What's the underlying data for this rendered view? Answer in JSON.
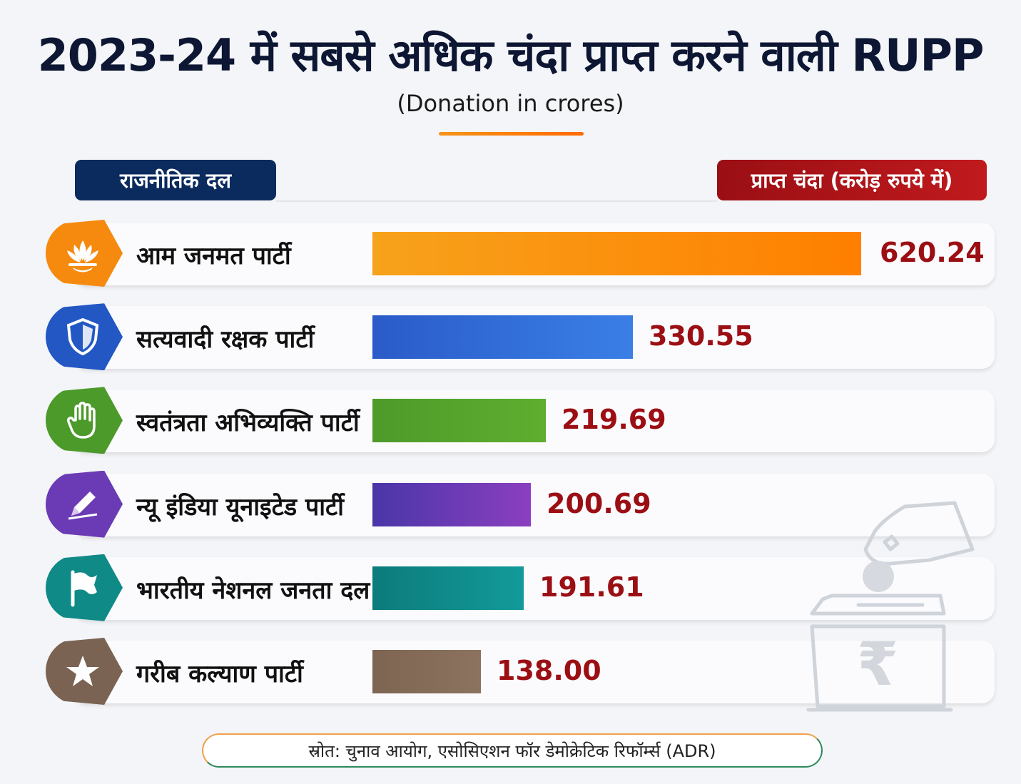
{
  "header": {
    "title": "2023-24 में सबसे अधिक चंदा प्राप्त करने वाली RUPP",
    "subtitle": "(Donation in crores)"
  },
  "column_headers": {
    "left": "राजनीतिक दल",
    "right": "प्राप्त चंदा (करोड़ रुपये में)"
  },
  "source": "स्रोत: चुनाव आयोग, एसोसिएशन फॉर डेमोक्रेटिक रिफॉर्म्स (ADR)",
  "chart_data": {
    "type": "bar",
    "orientation": "horizontal",
    "categories": [
      "आम जनमत पार्टी",
      "सत्यवादी रक्षक पार्टी",
      "स्वतंत्रता अभिव्यक्ति पार्टी",
      "न्यू इंडिया यूनाइटेड पार्टी",
      "भारतीय नेशनल जनता दल",
      "गरीब कल्याण पार्टी"
    ],
    "values": [
      620.24,
      330.55,
      219.69,
      200.69,
      191.61,
      138.0
    ],
    "value_labels": [
      "620.24",
      "330.55",
      "219.69",
      "200.69",
      "191.61",
      "138.00"
    ],
    "title": "2023-24 में सबसे अधिक चंदा प्राप्त करने वाली RUPP",
    "subtitle": "(Donation in crores)",
    "xlim": [
      0,
      620.24
    ],
    "grid": false,
    "legend": "none"
  },
  "rows": [
    {
      "icon": "lotus-icon",
      "color_start": "#f7a21b",
      "color_end": "#ff7f00",
      "badge_color": "#f58a0f"
    },
    {
      "icon": "shield-icon",
      "color_start": "#2a5bc9",
      "color_end": "#3a7fe6",
      "badge_color": "#2257c4"
    },
    {
      "icon": "hand-icon",
      "color_start": "#4e9a2a",
      "color_end": "#5fae2f",
      "badge_color": "#4c9a2a"
    },
    {
      "icon": "pencil-icon",
      "color_start": "#4a36a8",
      "color_end": "#8a3fc0",
      "badge_color": "#6a3bb4"
    },
    {
      "icon": "flag-icon",
      "color_start": "#0c7b7b",
      "color_end": "#139a9a",
      "badge_color": "#0f8a86"
    },
    {
      "icon": "star-icon",
      "color_start": "#7d6552",
      "color_end": "#8c735f",
      "badge_color": "#7a6352"
    }
  ],
  "decoration": {
    "icon": "ballot-box-icon",
    "symbol": "₹"
  }
}
